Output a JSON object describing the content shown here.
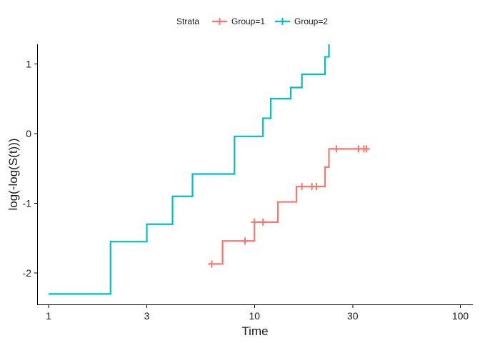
{
  "chart_data": {
    "type": "line",
    "title": "",
    "xlabel": "Time",
    "ylabel": "log(-log(S(t)))",
    "x_scale": "log10",
    "xlim": [
      0.88,
      115
    ],
    "ylim": [
      -2.45,
      1.28
    ],
    "x_ticks": [
      {
        "value": 1,
        "label": "1"
      },
      {
        "value": 3,
        "label": "3"
      },
      {
        "value": 10,
        "label": "10"
      },
      {
        "value": 30,
        "label": "30"
      },
      {
        "value": 100,
        "label": "100"
      }
    ],
    "y_ticks": [
      {
        "value": 1,
        "label": "1"
      },
      {
        "value": 0,
        "label": "0"
      },
      {
        "value": -1,
        "label": "-1"
      },
      {
        "value": -2,
        "label": "-2"
      }
    ],
    "legend": {
      "title": "Strata",
      "position": "top",
      "entries": [
        "Group=1",
        "Group=2"
      ]
    },
    "grid": false,
    "series": [
      {
        "name": "Group=1",
        "color": "#F8766D",
        "steps": [
          {
            "x": 6,
            "y": -1.87
          },
          {
            "x": 7,
            "y": -1.54
          },
          {
            "x": 10,
            "y": -1.27
          },
          {
            "x": 13,
            "y": -0.98
          },
          {
            "x": 16,
            "y": -0.76
          },
          {
            "x": 22,
            "y": -0.48
          },
          {
            "x": 23,
            "y": -0.22
          },
          {
            "x": 35,
            "y": -0.22
          }
        ],
        "censored": [
          {
            "x": 6.2,
            "y": -1.87
          },
          {
            "x": 9,
            "y": -1.54
          },
          {
            "x": 10,
            "y": -1.27
          },
          {
            "x": 11,
            "y": -1.27
          },
          {
            "x": 17,
            "y": -0.76
          },
          {
            "x": 19,
            "y": -0.76
          },
          {
            "x": 20,
            "y": -0.76
          },
          {
            "x": 25,
            "y": -0.22
          },
          {
            "x": 32,
            "y": -0.22
          },
          {
            "x": 34,
            "y": -0.22
          },
          {
            "x": 35,
            "y": -0.22
          }
        ]
      },
      {
        "name": "Group=2",
        "color": "#00BFC4",
        "steps": [
          {
            "x": 1,
            "y": -2.3
          },
          {
            "x": 2,
            "y": -1.55
          },
          {
            "x": 3,
            "y": -1.3
          },
          {
            "x": 4,
            "y": -0.9
          },
          {
            "x": 5,
            "y": -0.58
          },
          {
            "x": 8,
            "y": -0.04
          },
          {
            "x": 11,
            "y": 0.22
          },
          {
            "x": 12,
            "y": 0.5
          },
          {
            "x": 15,
            "y": 0.66
          },
          {
            "x": 17,
            "y": 0.85
          },
          {
            "x": 22,
            "y": 1.1
          },
          {
            "x": 23,
            "y": 1.28
          }
        ],
        "censored": []
      }
    ]
  }
}
